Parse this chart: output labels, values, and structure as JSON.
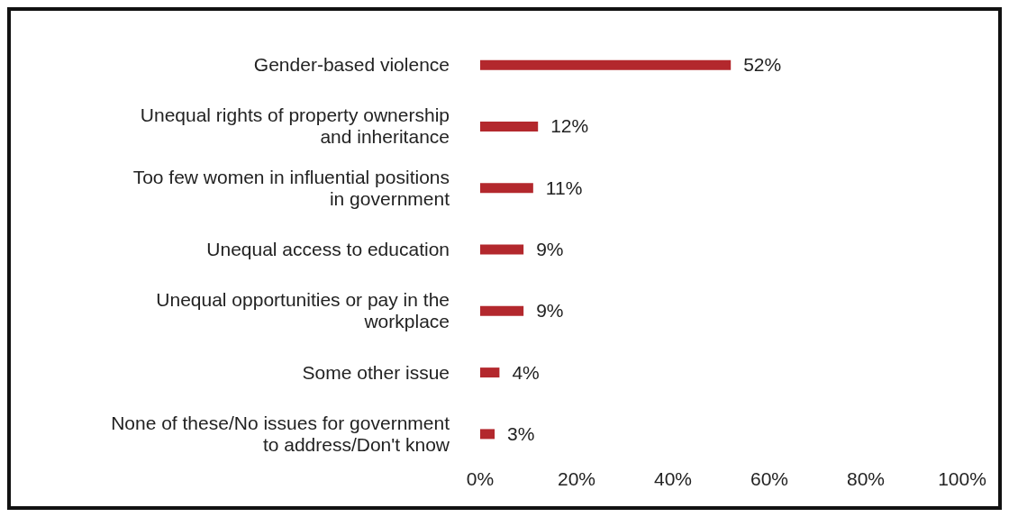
{
  "chart_data": {
    "type": "bar",
    "orientation": "horizontal",
    "categories": [
      "Gender-based violence",
      "Unequal rights of property ownership and inheritance",
      "Too few women in influential positions in government",
      "Unequal access to education",
      "Unequal opportunities or pay in the workplace",
      "Some other issue",
      "None of these/No issues for government to address/Don't know"
    ],
    "values": [
      52,
      12,
      11,
      9,
      9,
      4,
      3
    ],
    "value_labels": [
      "52%",
      "12%",
      "11%",
      "9%",
      "9%",
      "4%",
      "3%"
    ],
    "color": "#b3282d",
    "xlim": [
      0,
      100
    ],
    "xticks": [
      {
        "value": 0,
        "label": "0%"
      },
      {
        "value": 20,
        "label": "20%"
      },
      {
        "value": 40,
        "label": "40%"
      },
      {
        "value": 60,
        "label": "60%"
      },
      {
        "value": 80,
        "label": "80%"
      },
      {
        "value": 100,
        "label": "100%"
      }
    ],
    "grid": false,
    "legend": false
  }
}
